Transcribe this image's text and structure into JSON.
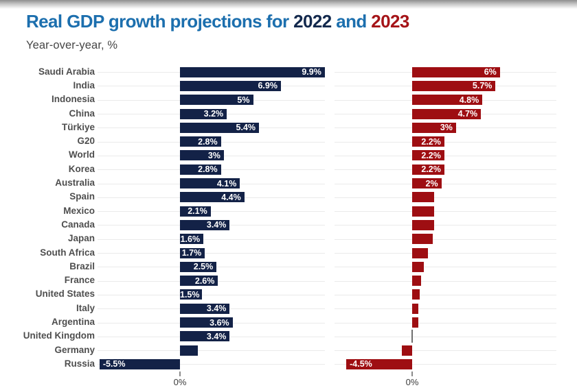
{
  "header": {
    "title_prefix": "Real GDP growth projections for",
    "title_year1": "2022",
    "title_conjunction": "and",
    "title_year2": "2023",
    "subtitle": "Year-over-year, %"
  },
  "axis": {
    "left_zero_label": "0%",
    "right_zero_label": "0%"
  },
  "colors": {
    "bar_2022_navy": "#132247",
    "bar_2023_red": "#9e0e12",
    "title_blue": "#1c6fae",
    "title_navy": "#13294d",
    "title_red": "#a51418",
    "subtitle_gray": "#464646",
    "country_label_gray": "#4e4e4e",
    "gridline_gray": "#eaeaea",
    "zero_value_bar_gray": "#6f6f6f",
    "bar_value_text": "#ffffff"
  },
  "chart_data": {
    "type": "bar",
    "orientation": "horizontal",
    "title": "Real GDP growth projections for 2022 and 2023",
    "subtitle": "Year-over-year, %",
    "unit": "percent",
    "axis_range_pct": [
      -5.5,
      9.9
    ],
    "zero_tick_label": "0%",
    "grid": "row-gridlines-on",
    "legend": "none (years colored in title)",
    "categories": [
      "Saudi Arabia",
      "India",
      "Indonesia",
      "China",
      "Türkiye",
      "G20",
      "World",
      "Korea",
      "Australia",
      "Spain",
      "Mexico",
      "Canada",
      "Japan",
      "South Africa",
      "Brazil",
      "France",
      "United States",
      "Italy",
      "Argentina",
      "United Kingdom",
      "Germany",
      "Russia"
    ],
    "series": [
      {
        "name": "2022",
        "panel": "left",
        "values": [
          9.9,
          6.9,
          5.0,
          3.2,
          5.4,
          2.8,
          3.0,
          2.8,
          4.1,
          4.4,
          2.1,
          3.4,
          1.6,
          1.7,
          2.5,
          2.6,
          1.5,
          3.4,
          3.6,
          3.4,
          1.2,
          -5.5
        ],
        "labels": [
          "9.9%",
          "6.9%",
          "5%",
          "3.2%",
          "5.4%",
          "2.8%",
          "3%",
          "2.8%",
          "4.1%",
          "4.4%",
          "2.1%",
          "3.4%",
          "1.6%",
          "1.7%",
          "2.5%",
          "2.6%",
          "1.5%",
          "3.4%",
          "3.6%",
          "3.4%",
          null,
          "-5.5%"
        ]
      },
      {
        "name": "2023",
        "panel": "right",
        "values": [
          6.0,
          5.7,
          4.8,
          4.7,
          3.0,
          2.2,
          2.2,
          2.2,
          2.0,
          1.5,
          1.5,
          1.5,
          1.4,
          1.1,
          0.8,
          0.6,
          0.5,
          0.4,
          0.4,
          0.0,
          -0.7,
          -4.5
        ],
        "labels": [
          "6%",
          "5.7%",
          "4.8%",
          "4.7%",
          "3%",
          "2.2%",
          "2.2%",
          "2.2%",
          "2%",
          null,
          null,
          null,
          null,
          null,
          null,
          null,
          null,
          null,
          null,
          null,
          null,
          "-4.5%"
        ]
      }
    ]
  }
}
